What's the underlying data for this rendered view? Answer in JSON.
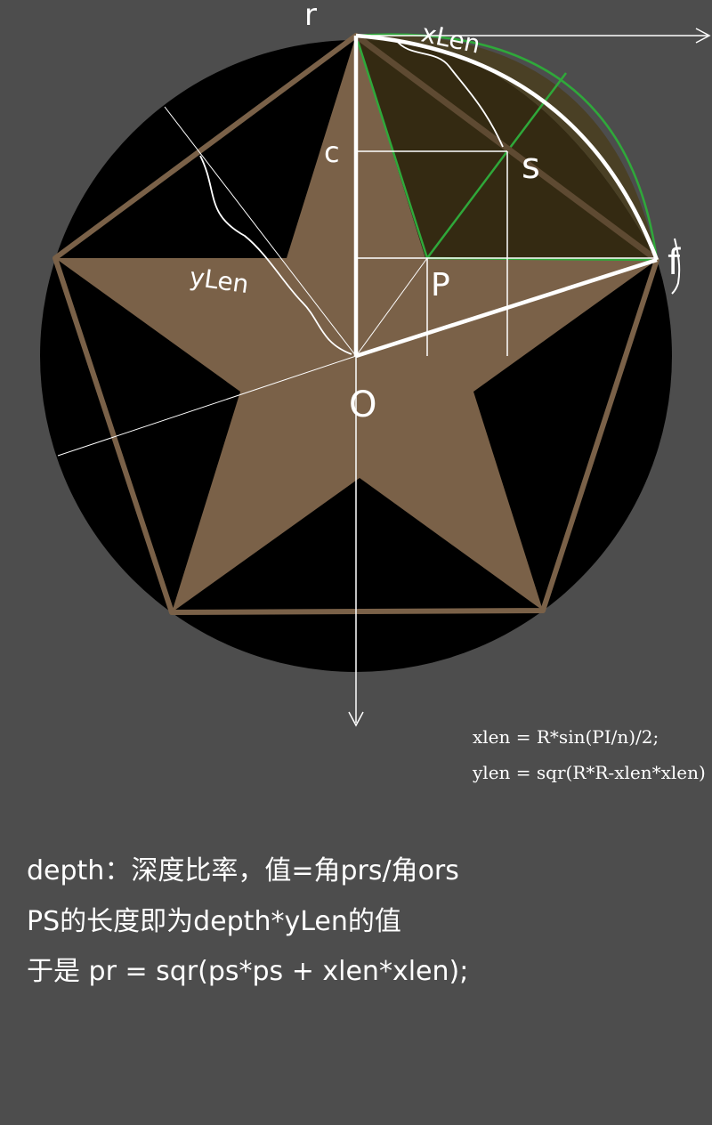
{
  "diagram": {
    "labels": {
      "r": "r",
      "c": "c",
      "s": "s",
      "f": "f",
      "p": "P",
      "o": "O",
      "xlen_top": "xLen",
      "xlen_left": "yLen"
    },
    "colors": {
      "background": "#4d4d4d",
      "circle": "#000000",
      "star": "#7a6148",
      "pentagon": "#7a6148",
      "highlight_fill": "#3a2f14",
      "highlight_edge": "#2fa83a",
      "construction": "#ffffff"
    }
  },
  "formulas": {
    "xlen": "xlen = R*sin(PI/n)/2;",
    "ylen": "ylen = sqr(R*R-xlen*xlen)"
  },
  "notes": {
    "depth": "depth：深度比率，值=角prs/角ors",
    "ps": "PS的长度即为depth*yLen的值",
    "pr": "于是 pr = sqr(ps*ps + xlen*xlen);"
  }
}
